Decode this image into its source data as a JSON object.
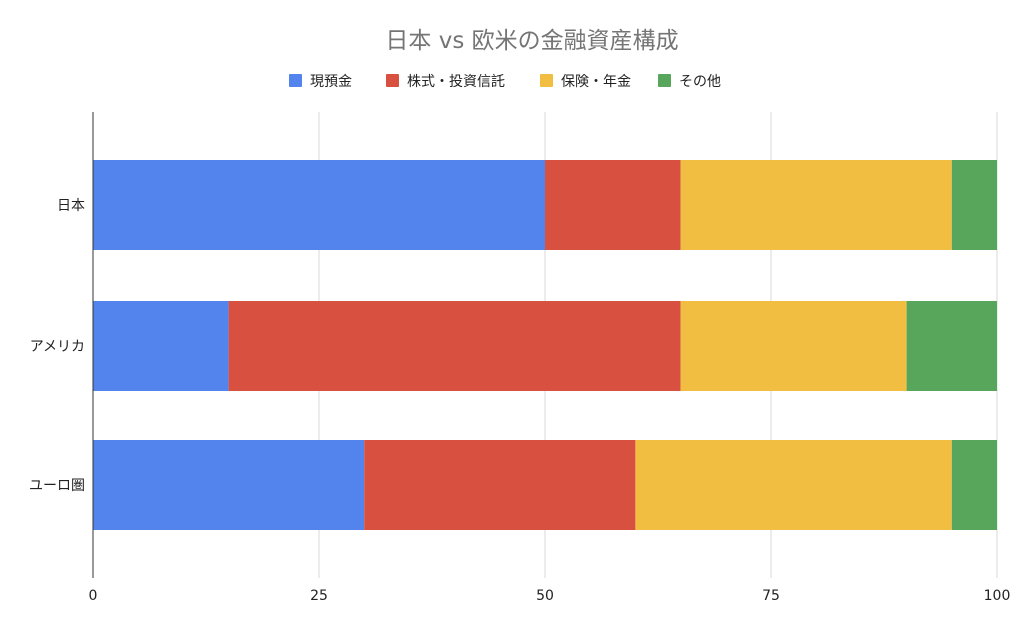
{
  "chart_data": {
    "type": "bar",
    "orientation": "horizontal",
    "stacked": true,
    "title": "日本 vs 欧米の金融資産構成",
    "categories": [
      "日本",
      "アメリカ",
      "ユーロ圏"
    ],
    "series": [
      {
        "name": "現預金",
        "color": "#5384ed",
        "values": [
          50,
          15,
          30
        ]
      },
      {
        "name": "株式・投資信託",
        "color": "#d85140",
        "values": [
          15,
          50,
          30
        ]
      },
      {
        "name": "保険・年金",
        "color": "#f1be42",
        "values": [
          30,
          25,
          35
        ]
      },
      {
        "name": "その他",
        "color": "#58a65c",
        "values": [
          5,
          10,
          5
        ]
      }
    ],
    "xlim": [
      0,
      100
    ],
    "xticks": [
      "0",
      "25",
      "50",
      "75",
      "100"
    ],
    "xlabel": "",
    "ylabel": "",
    "grid": true,
    "legend_position": "top"
  }
}
